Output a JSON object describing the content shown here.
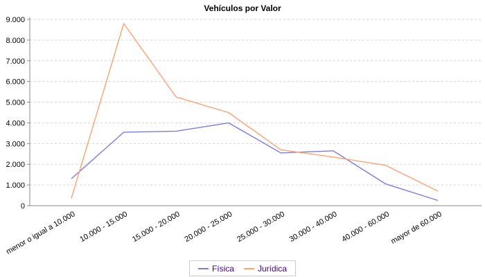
{
  "chart_data": {
    "type": "line",
    "title": "Vehículos por Valor",
    "categories": [
      "menor o igual a 10.000",
      "10.000 - 15.000",
      "15.000 - 20.000",
      "20.000 - 25.000",
      "25.000 - 30.000",
      "30.000 - 40.000",
      "40.000 - 60.000",
      "mayor de 60.000"
    ],
    "series": [
      {
        "name": "Física",
        "color": "#7b7be0",
        "values": [
          1300,
          3550,
          3600,
          4000,
          2550,
          2650,
          1050,
          250
        ]
      },
      {
        "name": "Jurídica",
        "color": "#faa26e",
        "values": [
          350,
          8800,
          5250,
          4500,
          2700,
          2350,
          1950,
          700
        ]
      }
    ],
    "xlabel": "",
    "ylabel": "",
    "ylim": [
      0,
      9000
    ],
    "y_tick_step": 1000,
    "y_tick_labels": [
      "0",
      "1.000",
      "2.000",
      "3.000",
      "4.000",
      "5.000",
      "6.000",
      "7.000",
      "8.000",
      "9.000"
    ],
    "grid": "horizontal-dashed",
    "legend_position": "bottom",
    "x_label_rotation": -30
  },
  "colors": {
    "background": "#ffffff",
    "axis": "#8a8a8a",
    "gridline": "#d4d4d4",
    "tick_text": "#000000",
    "title_text": "#000000",
    "legend_text": "#43008b",
    "legend_border": "#cccccc"
  }
}
